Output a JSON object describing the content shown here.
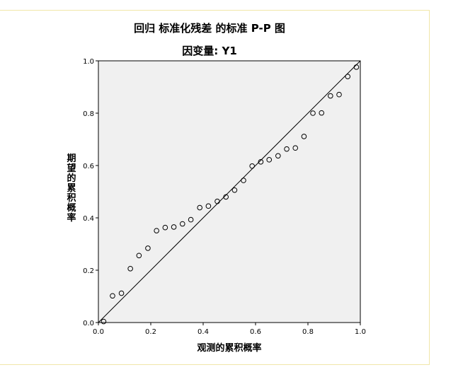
{
  "chart_data": {
    "type": "scatter",
    "title": "回归 标准化残差 的标准 P-P 图",
    "subtitle": "因变量: Y1",
    "xlabel": "观测的累积概率",
    "ylabel": "期望的累积概率",
    "xlim": [
      0.0,
      1.0
    ],
    "ylim": [
      0.0,
      1.0
    ],
    "xticks": [
      "0.0",
      "0.2",
      "0.4",
      "0.6",
      "0.8",
      "1.0"
    ],
    "yticks": [
      "0.0",
      "0.2",
      "0.4",
      "0.6",
      "0.8",
      "1.0"
    ],
    "reference_line": {
      "from": [
        0,
        0
      ],
      "to": [
        1,
        1
      ]
    },
    "plot_background": "#f0f0f0",
    "marker": "open-circle",
    "grid": false,
    "points": [
      {
        "x": 0.02,
        "y": 0.004
      },
      {
        "x": 0.054,
        "y": 0.102
      },
      {
        "x": 0.088,
        "y": 0.112
      },
      {
        "x": 0.122,
        "y": 0.206
      },
      {
        "x": 0.155,
        "y": 0.256
      },
      {
        "x": 0.189,
        "y": 0.284
      },
      {
        "x": 0.222,
        "y": 0.351
      },
      {
        "x": 0.255,
        "y": 0.363
      },
      {
        "x": 0.288,
        "y": 0.365
      },
      {
        "x": 0.321,
        "y": 0.377
      },
      {
        "x": 0.353,
        "y": 0.393
      },
      {
        "x": 0.387,
        "y": 0.439
      },
      {
        "x": 0.42,
        "y": 0.445
      },
      {
        "x": 0.454,
        "y": 0.463
      },
      {
        "x": 0.487,
        "y": 0.48
      },
      {
        "x": 0.52,
        "y": 0.506
      },
      {
        "x": 0.554,
        "y": 0.543
      },
      {
        "x": 0.587,
        "y": 0.598
      },
      {
        "x": 0.62,
        "y": 0.614
      },
      {
        "x": 0.652,
        "y": 0.622
      },
      {
        "x": 0.686,
        "y": 0.637
      },
      {
        "x": 0.719,
        "y": 0.663
      },
      {
        "x": 0.752,
        "y": 0.667
      },
      {
        "x": 0.785,
        "y": 0.711
      },
      {
        "x": 0.819,
        "y": 0.8
      },
      {
        "x": 0.852,
        "y": 0.801
      },
      {
        "x": 0.886,
        "y": 0.866
      },
      {
        "x": 0.919,
        "y": 0.871
      },
      {
        "x": 0.952,
        "y": 0.94
      },
      {
        "x": 0.985,
        "y": 0.976
      }
    ]
  }
}
